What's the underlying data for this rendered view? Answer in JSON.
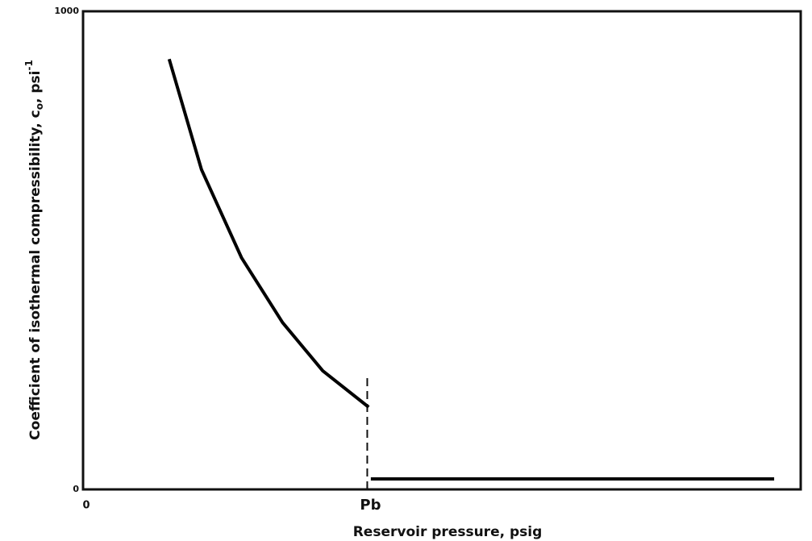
{
  "chart_data": {
    "type": "line",
    "xlabel": "Reservoir pressure, psig",
    "ylabel_parts": [
      "Coefficient of isothermal compressibility, c",
      "o",
      ", psi",
      "-1"
    ],
    "x": [
      12,
      16.5,
      22.1,
      27.8,
      33.4,
      39.8,
      39.9,
      40.1,
      96.3
    ],
    "series": [
      {
        "color": "#000000",
        "values": [
          900,
          669,
          484,
          349,
          248,
          172,
          null,
          22,
          22
        ]
      }
    ],
    "xlim": [
      0,
      100
    ],
    "ylim": [
      0,
      1000
    ],
    "xticks": [
      0,
      {
        "value": 39.6,
        "label": "Pb"
      }
    ],
    "yticks": [
      0,
      1000
    ],
    "dashed_marker": {
      "x": 39.6,
      "ylim": [
        0,
        234
      ]
    }
  }
}
